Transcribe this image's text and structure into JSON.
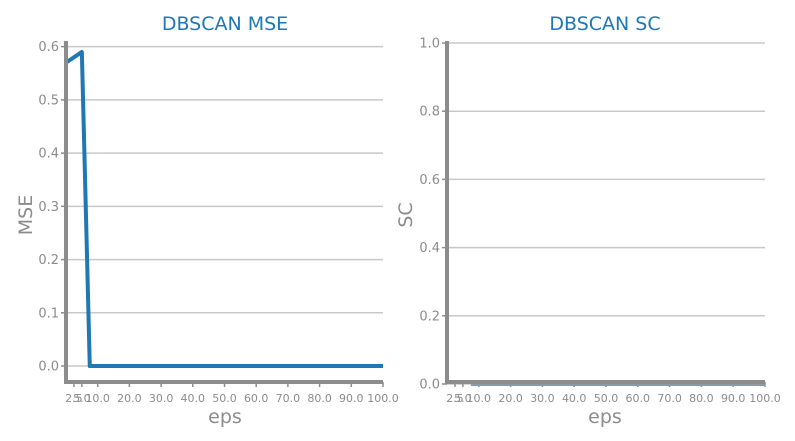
{
  "chart_data": [
    {
      "type": "line",
      "title": "DBSCAN MSE",
      "xlabel": "eps",
      "ylabel": "MSE",
      "xlim": [
        0,
        100
      ],
      "ylim": [
        -0.03,
        0.62
      ],
      "xticks": [
        2.5,
        5.0,
        10.0,
        20.0,
        30.0,
        40.0,
        50.0,
        60.0,
        70.0,
        80.0,
        90.0,
        100.0
      ],
      "xtick_labels": [
        "2.5",
        "5.0",
        "10.0",
        "20.0",
        "30.0",
        "40.0",
        "50.0",
        "60.0",
        "70.0",
        "80.0",
        "90.0",
        "100.0"
      ],
      "yticks": [
        0.0,
        0.1,
        0.2,
        0.3,
        0.4,
        0.5,
        0.6
      ],
      "ytick_labels": [
        "0.0",
        "0.1",
        "0.2",
        "0.3",
        "0.4",
        "0.5",
        "0.6"
      ],
      "grid": true,
      "color": "#1f77b4",
      "series": [
        {
          "x": [
            0.0,
            2.5,
            5.0,
            7.5,
            10.0,
            20.0,
            30.0,
            40.0,
            50.0,
            60.0,
            70.0,
            80.0,
            90.0,
            100.0
          ],
          "values": [
            0.57,
            0.58,
            0.59,
            0.0,
            0.0,
            0.0,
            0.0,
            0.0,
            0.0,
            0.0,
            0.0,
            0.0,
            0.0,
            0.0
          ]
        }
      ]
    },
    {
      "type": "line",
      "title": "DBSCAN SC",
      "xlabel": "eps",
      "ylabel": "SC",
      "xlim": [
        0,
        100
      ],
      "ylim": [
        0.0,
        1.0
      ],
      "xticks": [
        2.5,
        5.0,
        10.0,
        20.0,
        30.0,
        40.0,
        50.0,
        60.0,
        70.0,
        80.0,
        90.0,
        100.0
      ],
      "xtick_labels": [
        "2.5",
        "5.0",
        "10.0",
        "20.0",
        "30.0",
        "40.0",
        "50.0",
        "60.0",
        "70.0",
        "80.0",
        "90.0",
        "100.0"
      ],
      "yticks": [
        0.0,
        0.2,
        0.4,
        0.6,
        0.8,
        1.0
      ],
      "ytick_labels": [
        "0.0",
        "0.2",
        "0.4",
        "0.6",
        "0.8",
        "1.0"
      ],
      "grid": true,
      "color": "#8c9aa6",
      "series": [
        {
          "x": [
            7.5,
            10.0,
            20.0,
            30.0,
            40.0,
            50.0,
            60.0,
            70.0,
            80.0,
            90.0,
            100.0
          ],
          "values": [
            0.0,
            0.0,
            0.0,
            0.0,
            0.0,
            0.0,
            0.0,
            0.0,
            0.0,
            0.0,
            0.0
          ]
        }
      ]
    }
  ]
}
